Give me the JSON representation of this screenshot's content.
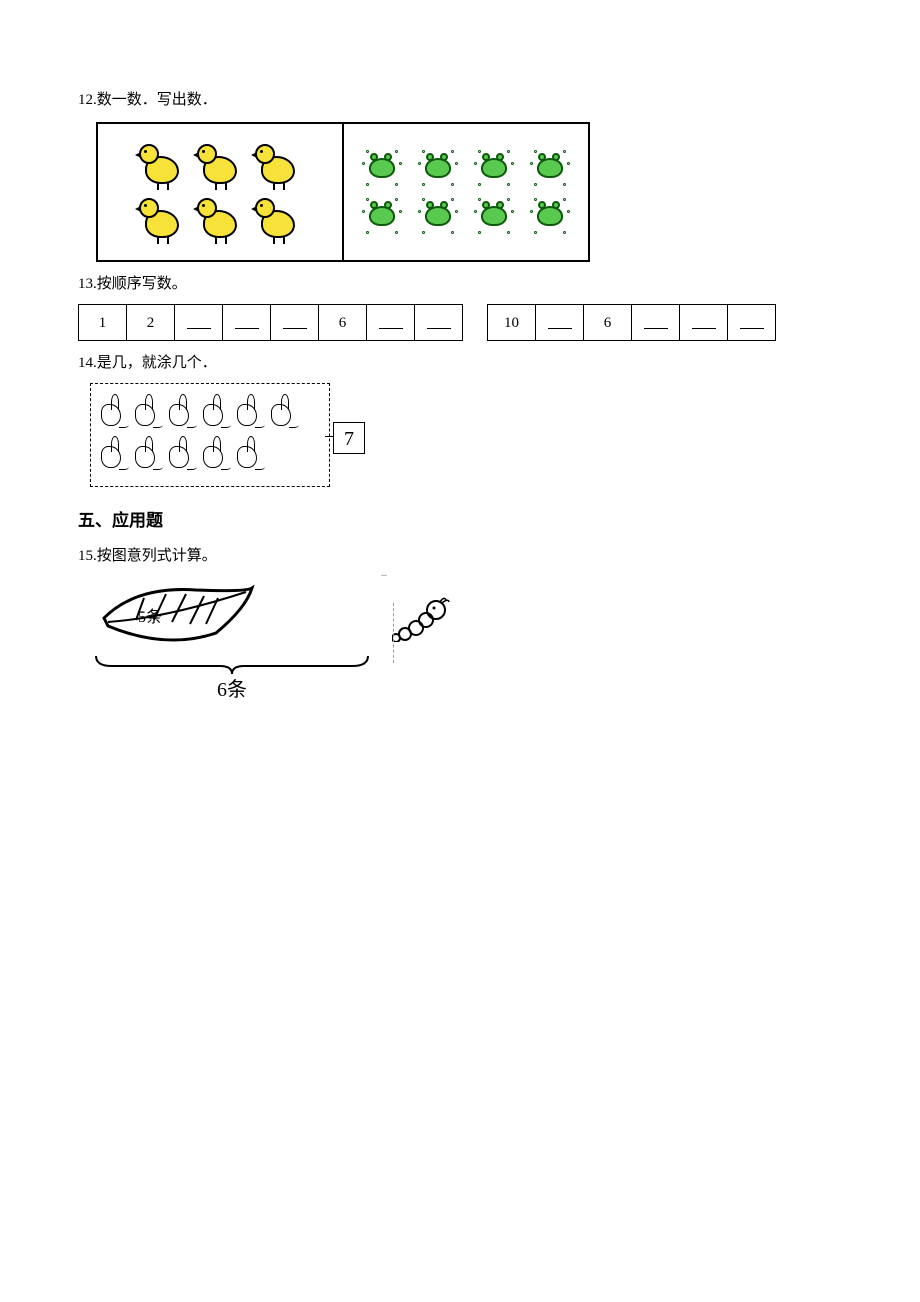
{
  "q12": {
    "prompt": "12.数一数．写出数．",
    "left_rows": [
      3,
      3
    ],
    "right_rows": [
      4,
      4
    ]
  },
  "q13": {
    "prompt": "13.按顺序写数。",
    "table1": [
      "1",
      "2",
      "",
      "",
      "",
      "6",
      "",
      ""
    ],
    "table2": [
      "10",
      "",
      "6",
      "",
      "",
      ""
    ],
    "blank_marker": "—"
  },
  "q14": {
    "prompt": "14.是几，就涂几个．",
    "rows": [
      6,
      5
    ],
    "number": "7"
  },
  "section5": "五、应用题",
  "q15": {
    "prompt": "15.按图意列式计算。",
    "leaf_label": "5条",
    "brace_label": "6条"
  },
  "colors": {
    "chick_fill": "#f7e23a",
    "frog_fill": "#5ac94f",
    "frog_stroke": "#0a5a0a",
    "text": "#000000",
    "bg": "#ffffff"
  }
}
